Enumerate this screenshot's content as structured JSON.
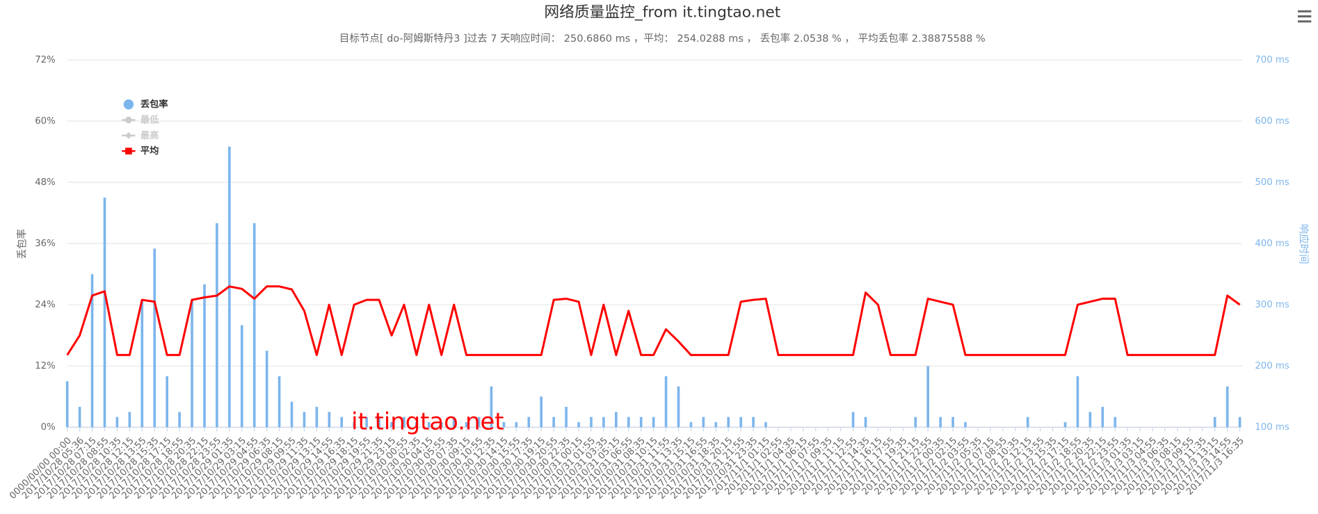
{
  "chart_data": {
    "type": "combo",
    "title": "网络质量监控_from it.tingtao.net",
    "subtitle": "目标节点[ do-阿姆斯特丹3 ]过去 7 天响应时间： 250.6860 ms ，平均： 254.0288 ms ， 丢包率 2.0538 % ， 平均丢包率 2.38875588 %",
    "watermark": "it.tingtao.net",
    "y_label": "丢包率",
    "y2_label": "响应时间",
    "categories": [
      "0000/00/00 00:00",
      "2017/10/28 05:36",
      "2017/10/28 07:15",
      "2017/10/28 08:55",
      "2017/10/28 10:35",
      "2017/10/28 12:15",
      "2017/10/28 13:55",
      "2017/10/28 15:35",
      "2017/10/28 17:15",
      "2017/10/28 18:55",
      "2017/10/28 20:35",
      "2017/10/28 22:15",
      "2017/10/28 23:55",
      "2017/10/29 01:35",
      "2017/10/29 03:15",
      "2017/10/29 04:55",
      "2017/10/29 06:35",
      "2017/10/29 08:15",
      "2017/10/29 09:55",
      "2017/10/29 11:35",
      "2017/10/29 13:15",
      "2017/10/29 14:55",
      "2017/10/29 16:35",
      "2017/10/29 18:15",
      "2017/10/29 19:55",
      "2017/10/29 21:35",
      "2017/10/29 23:15",
      "2017/10/30 00:55",
      "2017/10/30 02:35",
      "2017/10/30 04:15",
      "2017/10/30 05:55",
      "2017/10/30 07:35",
      "2017/10/30 09:15",
      "2017/10/30 10:55",
      "2017/10/30 12:35",
      "2017/10/30 14:15",
      "2017/10/30 15:55",
      "2017/10/30 17:35",
      "2017/10/30 19:15",
      "2017/10/30 20:55",
      "2017/10/30 22:35",
      "2017/10/31 00:15",
      "2017/10/31 01:55",
      "2017/10/31 03:35",
      "2017/10/31 05:15",
      "2017/10/31 06:55",
      "2017/10/31 08:35",
      "2017/10/31 10:15",
      "2017/10/31 11:55",
      "2017/10/31 13:35",
      "2017/10/31 15:15",
      "2017/10/31 16:55",
      "2017/10/31 18:35",
      "2017/10/31 20:15",
      "2017/10/31 21:55",
      "2017/10/31 23:35",
      "2017/11/1 01:15",
      "2017/11/1 02:55",
      "2017/11/1 04:35",
      "2017/11/1 06:15",
      "2017/11/1 07:55",
      "2017/11/1 09:35",
      "2017/11/1 11:15",
      "2017/11/1 12:55",
      "2017/11/1 14:35",
      "2017/11/1 16:15",
      "2017/11/1 17:55",
      "2017/11/1 19:35",
      "2017/11/1 21:15",
      "2017/11/1 22:55",
      "2017/11/2 00:35",
      "2017/11/2 02:15",
      "2017/11/2 03:55",
      "2017/11/2 05:35",
      "2017/11/2 07:15",
      "2017/11/2 08:55",
      "2017/11/2 10:35",
      "2017/11/2 12:15",
      "2017/11/2 13:55",
      "2017/11/2 15:35",
      "2017/11/2 17:15",
      "2017/11/2 18:55",
      "2017/11/2 20:35",
      "2017/11/2 22:15",
      "2017/11/2 23:55",
      "2017/11/3 01:35",
      "2017/11/3 03:15",
      "2017/11/3 04:55",
      "2017/11/3 06:35",
      "2017/11/3 08:15",
      "2017/11/3 09:55",
      "2017/11/3 11:35",
      "2017/11/3 13:15",
      "2017/11/3 14:55",
      "2017/11/3 16:35"
    ],
    "series": [
      {
        "name": "丢包率",
        "type": "column",
        "axis": "y",
        "color": "#7cb5ec",
        "visible": true,
        "values": [
          9,
          4,
          30,
          45,
          2,
          3,
          25,
          35,
          10,
          3,
          25,
          28,
          40,
          55,
          20,
          40,
          15,
          10,
          5,
          3,
          4,
          3,
          2,
          1,
          2,
          2,
          1,
          2,
          1,
          1,
          1,
          2,
          1,
          2,
          8,
          1,
          1,
          2,
          6,
          2,
          4,
          1,
          2,
          2,
          3,
          2,
          2,
          2,
          10,
          8,
          1,
          2,
          1,
          2,
          2,
          2,
          1,
          0,
          0,
          0,
          0,
          0,
          0,
          3,
          2,
          0,
          0,
          0,
          2,
          12,
          2,
          2,
          1,
          0,
          0,
          0,
          0,
          2,
          0,
          0,
          1,
          10,
          3,
          4,
          2,
          0,
          0,
          0,
          0,
          0,
          0,
          0,
          2,
          8,
          2
        ]
      },
      {
        "name": "最低",
        "type": "line",
        "axis": "y2",
        "color": "#cccccc",
        "visible": false
      },
      {
        "name": "最高",
        "type": "line",
        "axis": "y2",
        "color": "#cccccc",
        "visible": false
      },
      {
        "name": "平均",
        "type": "line",
        "axis": "y2",
        "color": "#ff0000",
        "visible": true,
        "values": [
          218,
          250,
          315,
          322,
          218,
          218,
          308,
          305,
          218,
          218,
          308,
          312,
          315,
          330,
          326,
          310,
          330,
          330,
          325,
          290,
          218,
          300,
          218,
          300,
          308,
          308,
          250,
          300,
          218,
          300,
          218,
          300,
          218,
          218,
          218,
          218,
          218,
          218,
          218,
          308,
          310,
          305,
          218,
          300,
          218,
          290,
          218,
          218,
          260,
          240,
          218,
          218,
          218,
          218,
          305,
          308,
          310,
          218,
          218,
          218,
          218,
          218,
          218,
          218,
          320,
          300,
          218,
          218,
          218,
          310,
          305,
          300,
          218,
          218,
          218,
          218,
          218,
          218,
          218,
          218,
          218,
          300,
          305,
          310,
          310,
          218,
          218,
          218,
          218,
          218,
          218,
          218,
          218,
          315,
          300
        ]
      }
    ],
    "ylim": [
      0,
      72
    ],
    "yticks": [
      {
        "value": 0,
        "label": "0%"
      },
      {
        "value": 12,
        "label": "12%"
      },
      {
        "value": 24,
        "label": "24%"
      },
      {
        "value": 36,
        "label": "36%"
      },
      {
        "value": 48,
        "label": "48%"
      },
      {
        "value": 60,
        "label": "60%"
      },
      {
        "value": 72,
        "label": "72%"
      }
    ],
    "y2lim": [
      100,
      700
    ],
    "y2ticks": [
      {
        "value": 100,
        "label": "100 ms"
      },
      {
        "value": 200,
        "label": "200 ms"
      },
      {
        "value": 300,
        "label": "300 ms"
      },
      {
        "value": 400,
        "label": "400 ms"
      },
      {
        "value": 500,
        "label": "500 ms"
      },
      {
        "value": 600,
        "label": "600 ms"
      },
      {
        "value": 700,
        "label": "700 ms"
      }
    ],
    "grid": true,
    "legend": "top-left"
  }
}
